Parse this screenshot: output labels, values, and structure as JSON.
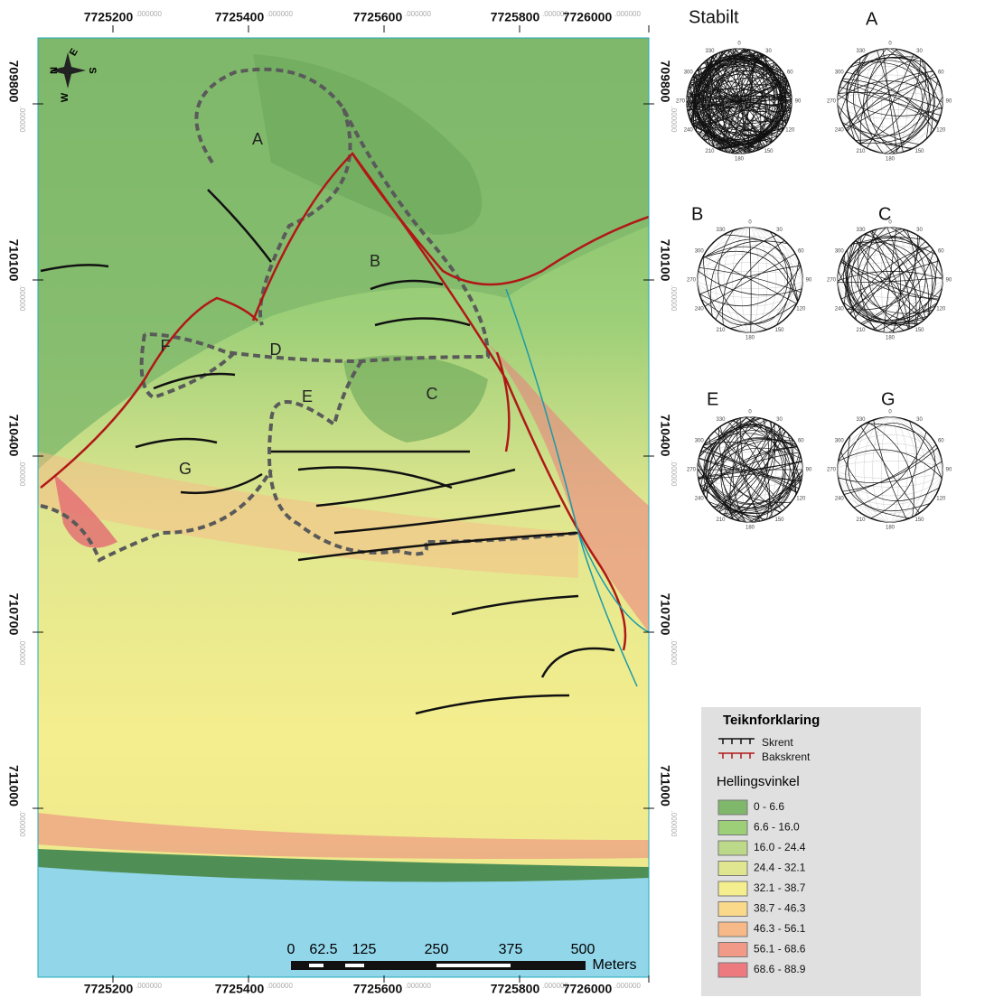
{
  "x_labels": [
    {
      "main": "7725200",
      "decimals": ".000000"
    },
    {
      "main": "7725400",
      "decimals": ".000000"
    },
    {
      "main": "7725600",
      "decimals": ".000000"
    },
    {
      "main": "7725800",
      "decimals": ".000000"
    },
    {
      "main": "7726000",
      "decimals": ".000000"
    }
  ],
  "y_labels": [
    {
      "main": "709800",
      "decimals": ".000000"
    },
    {
      "main": "710100",
      "decimals": ".000000"
    },
    {
      "main": "710400",
      "decimals": ".000000"
    },
    {
      "main": "710700",
      "decimals": ".000000"
    },
    {
      "main": "711000",
      "decimals": ".000000"
    }
  ],
  "compass": [
    "N",
    "E",
    "S",
    "W"
  ],
  "regions": [
    "A",
    "B",
    "C",
    "D",
    "E",
    "F",
    "G"
  ],
  "scale_bar": {
    "labels": [
      "0",
      "62.5",
      "125",
      "250",
      "375",
      "500"
    ],
    "unit": "Meters"
  },
  "stereonets": {
    "titles": [
      "Stabilt",
      "A",
      "B",
      "C",
      "E",
      "G"
    ],
    "degree_labels": [
      "0",
      "30",
      "60",
      "90",
      "120",
      "150",
      "180",
      "210",
      "240",
      "270",
      "300",
      "330"
    ]
  },
  "legend": {
    "title": "Teiknforklaring",
    "symbols": [
      "Skrent",
      "Bakskrent"
    ],
    "subtitle": "Hellingsvinkel",
    "classes": [
      {
        "label": "0 - 6.6",
        "color": "#7fb86a"
      },
      {
        "label": "6.6 - 16.0",
        "color": "#9ccf78"
      },
      {
        "label": "16.0 - 24.4",
        "color": "#bcd98a"
      },
      {
        "label": "24.4 - 32.1",
        "color": "#dfe68f"
      },
      {
        "label": "32.1 - 38.7",
        "color": "#f5ee8e"
      },
      {
        "label": "38.7 - 46.3",
        "color": "#fbd98a"
      },
      {
        "label": "46.3 - 56.1",
        "color": "#f8b988"
      },
      {
        "label": "56.1 - 68.6",
        "color": "#f29a88"
      },
      {
        "label": "68.6 - 88.9",
        "color": "#ec7a7f"
      }
    ]
  }
}
